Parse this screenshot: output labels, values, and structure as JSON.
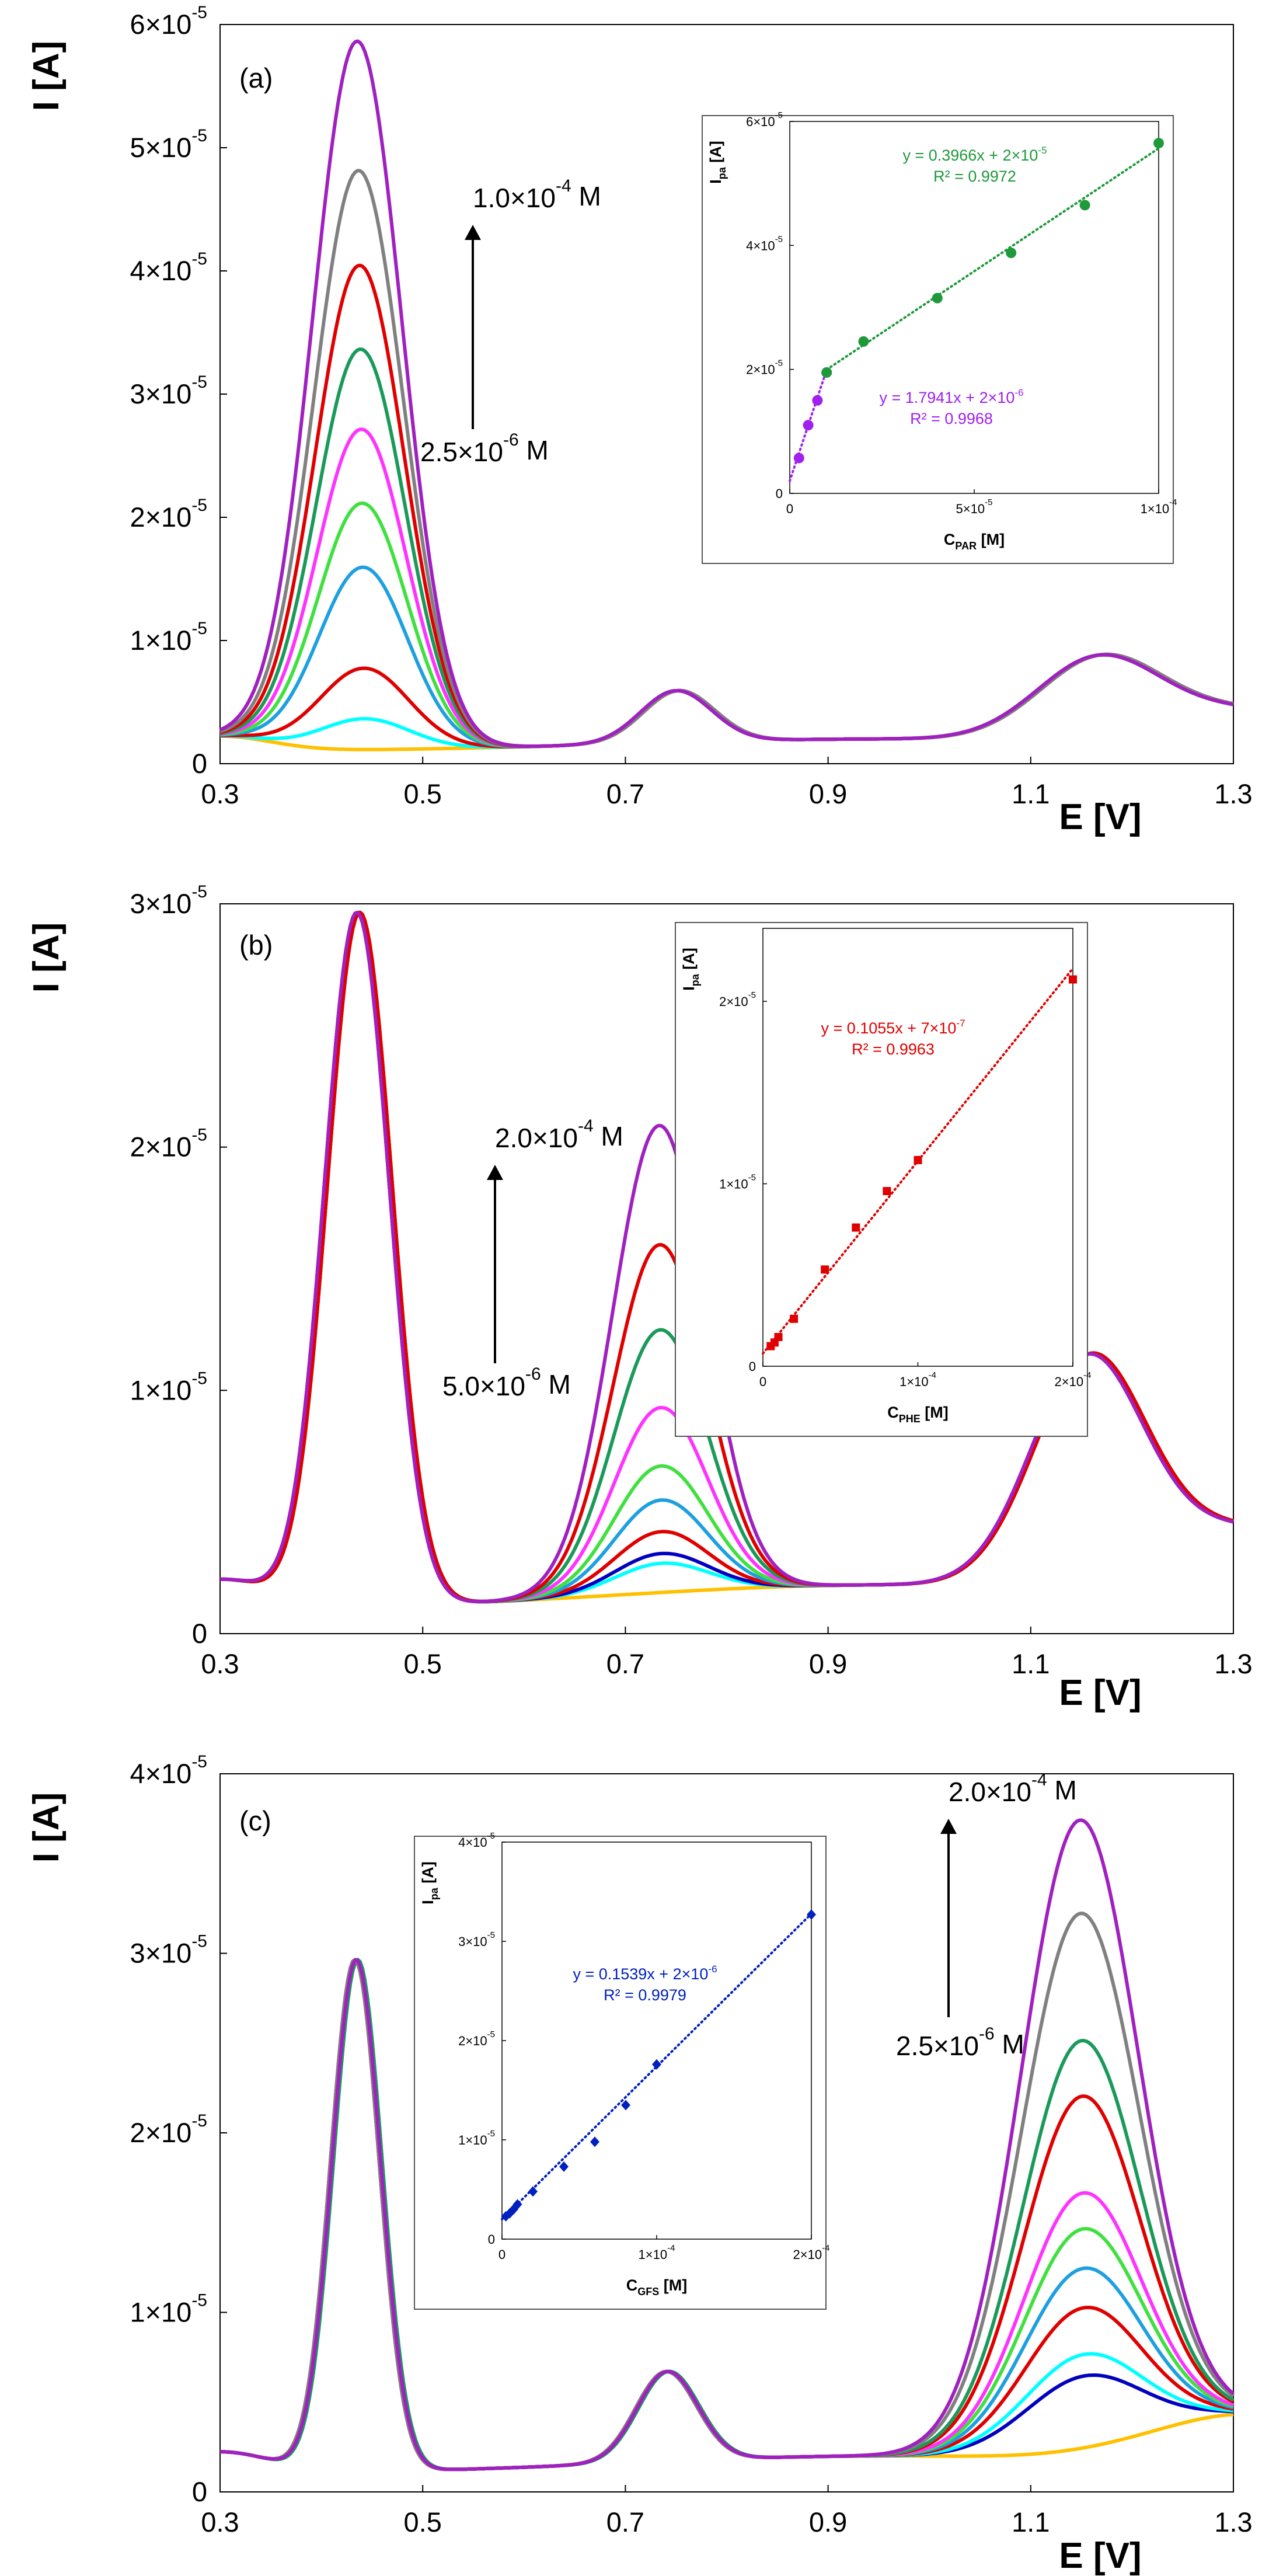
{
  "chart_data": [
    {
      "type": "line",
      "label": "(a)",
      "xlabel": "E [V]",
      "ylabel": "I [A]",
      "xlim": [
        0.3,
        1.3
      ],
      "ylim": [
        0,
        6e-05
      ],
      "xticks": [
        "0.3",
        "0.5",
        "0.7",
        "0.9",
        "1.1",
        "1.3"
      ],
      "yticks": [
        {
          "v": 0,
          "m": "0",
          "e": ""
        },
        {
          "v": 1e-05,
          "m": "1×10",
          "e": "-5"
        },
        {
          "v": 2e-05,
          "m": "2×10",
          "e": "-5"
        },
        {
          "v": 3e-05,
          "m": "3×10",
          "e": "-5"
        },
        {
          "v": 4e-05,
          "m": "4×10",
          "e": "-5"
        },
        {
          "v": 5e-05,
          "m": "5×10",
          "e": "-5"
        },
        {
          "v": 6e-05,
          "m": "6×10",
          "e": "-5"
        }
      ],
      "annotation_top": {
        "m": "1.0×10",
        "e": "-4",
        "u": " M"
      },
      "annotation_bottom": {
        "m": "2.5×10",
        "e": "-6",
        "u": " M"
      },
      "varying_peak_index": 0,
      "baseline_peaks": [
        {
          "mu": 0.75,
          "sigma": 0.035,
          "h": 4.2e-06
        },
        {
          "mu": 1.165,
          "sigma": 0.06,
          "h": 6.2e-06
        }
      ],
      "series": [
        {
          "color": "#FFC000",
          "peak": 0
        },
        {
          "color": "#00FFFF",
          "peak": 2.5e-06
        },
        {
          "color": "#E00000",
          "peak": 6.6e-06
        },
        {
          "color": "#1EA0E0",
          "peak": 1.48e-05
        },
        {
          "color": "#40E040",
          "peak": 2e-05
        },
        {
          "color": "#FF33FF",
          "peak": 2.6e-05
        },
        {
          "color": "#1A9A5A",
          "peak": 3.25e-05
        },
        {
          "color": "#E00000",
          "peak": 3.93e-05
        },
        {
          "color": "#808080",
          "peak": 4.7e-05
        },
        {
          "color": "#A020C0",
          "peak": 5.75e-05
        }
      ],
      "inset": {
        "xlabel": {
          "main": "C",
          "sub": "PAR",
          "rest": " [M]"
        },
        "ylabel": {
          "main": "I",
          "sub": "pa",
          "rest": " [A]"
        },
        "xlim": [
          0,
          0.0001
        ],
        "ylim": [
          0,
          6e-05
        ],
        "xticks": [
          {
            "v": 0,
            "m": "0",
            "e": ""
          },
          {
            "v": 5e-05,
            "m": "5×10",
            "e": "-5"
          },
          {
            "v": 0.0001,
            "m": "1×10",
            "e": "-4"
          }
        ],
        "yticks": [
          {
            "v": 0,
            "m": "0",
            "e": ""
          },
          {
            "v": 2e-05,
            "m": "2×10",
            "e": "-5"
          },
          {
            "v": 4e-05,
            "m": "4×10",
            "e": "-5"
          },
          {
            "v": 6e-05,
            "m": "6×10",
            "e": "-5"
          }
        ],
        "sets": [
          {
            "color": "#A020F0",
            "marker": "circle",
            "points": [
              [
                2.5e-06,
                5.7e-06
              ],
              [
                5e-06,
                1.1e-05
              ],
              [
                7.5e-06,
                1.5e-05
              ],
              [
                1e-05,
                1.95e-05
              ]
            ],
            "fit": {
              "slope": 1.7941,
              "intercept": 2e-06,
              "from": 0,
              "to": 1e-05
            },
            "eq": {
              "line": "y = 1.7941x + 2×10",
              "e": "-6",
              "r2": "R² = 0.9968"
            }
          },
          {
            "color": "#1E9A3A",
            "marker": "circle",
            "points": [
              [
                1e-05,
                1.95e-05
              ],
              [
                2e-05,
                2.45e-05
              ],
              [
                4e-05,
                3.15e-05
              ],
              [
                6e-05,
                3.88e-05
              ],
              [
                8e-05,
                4.65e-05
              ],
              [
                0.0001,
                5.65e-05
              ]
            ],
            "fit": {
              "slope": 0.3966,
              "intercept": 1.6e-05,
              "from": 1e-05,
              "to": 0.0001
            },
            "eq": {
              "line": "y = 0.3966x + 2×10",
              "e": "-5",
              "r2": "R² = 0.9972"
            }
          }
        ]
      }
    },
    {
      "type": "line",
      "label": "(b)",
      "xlabel": "E [V]",
      "ylabel": "I [A]",
      "xlim": [
        0.3,
        1.3
      ],
      "ylim": [
        0,
        3e-05
      ],
      "xticks": [
        "0.3",
        "0.5",
        "0.7",
        "0.9",
        "1.1",
        "1.3"
      ],
      "yticks": [
        {
          "v": 0,
          "m": "0",
          "e": ""
        },
        {
          "v": 1e-05,
          "m": "1×10",
          "e": "-5"
        },
        {
          "v": 2e-05,
          "m": "2×10",
          "e": "-5"
        },
        {
          "v": 3e-05,
          "m": "3×10",
          "e": "-5"
        }
      ],
      "annotation_top": {
        "m": "2.0×10",
        "e": "-4",
        "u": " M"
      },
      "annotation_bottom": {
        "m": "5.0×10",
        "e": "-6",
        "u": " M"
      },
      "varying_peak_index": 1,
      "baseline_peaks": [
        {
          "mu": 0.435,
          "sigma": 0.032,
          "h": 2.85e-05
        },
        {
          "mu": 1.155,
          "sigma": 0.055,
          "h": 9e-06
        }
      ],
      "series": [
        {
          "color": "#FFC000",
          "peak": 0
        },
        {
          "color": "#00FFFF",
          "peak": 1.2e-06
        },
        {
          "color": "#0000C0",
          "peak": 1.6e-06
        },
        {
          "color": "#E00000",
          "peak": 2.5e-06
        },
        {
          "color": "#1EA0E0",
          "peak": 3.8e-06
        },
        {
          "color": "#40E040",
          "peak": 5.2e-06
        },
        {
          "color": "#FF33FF",
          "peak": 7.6e-06
        },
        {
          "color": "#1A9A5A",
          "peak": 1.08e-05
        },
        {
          "color": "#E00000",
          "peak": 1.43e-05
        },
        {
          "color": "#A020C0",
          "peak": 1.92e-05
        }
      ],
      "inset": {
        "xlabel": {
          "main": "C",
          "sub": "PHE",
          "rest": " [M]"
        },
        "ylabel": {
          "main": "I",
          "sub": "pa",
          "rest": " [A]"
        },
        "xlim": [
          0,
          0.0002
        ],
        "ylim": [
          0,
          2.4e-05
        ],
        "xticks": [
          {
            "v": 0,
            "m": "0",
            "e": ""
          },
          {
            "v": 0.0001,
            "m": "1×10",
            "e": "-4"
          },
          {
            "v": 0.0002,
            "m": "2×10",
            "e": "-4"
          }
        ],
        "yticks": [
          {
            "v": 0,
            "m": "0",
            "e": ""
          },
          {
            "v": 1e-05,
            "m": "1×10",
            "e": "-5"
          },
          {
            "v": 2e-05,
            "m": "2×10",
            "e": "-5"
          }
        ],
        "sets": [
          {
            "color": "#E00000",
            "marker": "square",
            "points": [
              [
                5e-06,
                1.1e-06
              ],
              [
                7.5e-06,
                1.3e-06
              ],
              [
                1e-05,
                1.6e-06
              ],
              [
                2e-05,
                2.6e-06
              ],
              [
                4e-05,
                5.3e-06
              ],
              [
                6e-05,
                7.6e-06
              ],
              [
                8e-05,
                9.6e-06
              ],
              [
                0.0001,
                1.13e-05
              ],
              [
                0.0002,
                2.12e-05
              ]
            ],
            "fit": {
              "slope": 0.1055,
              "intercept": 7e-07,
              "from": 0,
              "to": 0.0002
            },
            "eq": {
              "line": "y = 0.1055x + 7×10",
              "e": "-7",
              "r2": "R² = 0.9963"
            }
          }
        ]
      }
    },
    {
      "type": "line",
      "label": "(c)",
      "xlabel": "E [V]",
      "ylabel": "I [A]",
      "xlim": [
        0.3,
        1.3
      ],
      "ylim": [
        0,
        4e-05
      ],
      "xticks": [
        "0.3",
        "0.5",
        "0.7",
        "0.9",
        "1.1",
        "1.3"
      ],
      "yticks": [
        {
          "v": 0,
          "m": "0",
          "e": ""
        },
        {
          "v": 1e-05,
          "m": "1×10",
          "e": "-5"
        },
        {
          "v": 2e-05,
          "m": "2×10",
          "e": "-5"
        },
        {
          "v": 3e-05,
          "m": "3×10",
          "e": "-5"
        },
        {
          "v": 4e-05,
          "m": "4×10",
          "e": "-5"
        }
      ],
      "annotation_top": {
        "m": "2.0×10",
        "e": "-4",
        "u": " M"
      },
      "annotation_bottom": {
        "m": "2.5×10",
        "e": "-6",
        "u": " M"
      },
      "varying_peak_index": 2,
      "baseline_peaks": [
        {
          "mu": 0.433,
          "sigma": 0.024,
          "h": 2.85e-05
        },
        {
          "mu": 0.74,
          "sigma": 0.03,
          "h": 5e-06
        }
      ],
      "series": [
        {
          "color": "#FFC000",
          "peak": 0
        },
        {
          "color": "#0000C0",
          "peak": 4e-06
        },
        {
          "color": "#00FFFF",
          "peak": 5.2e-06
        },
        {
          "color": "#E00000",
          "peak": 7.8e-06
        },
        {
          "color": "#1EA0E0",
          "peak": 1e-05
        },
        {
          "color": "#40E040",
          "peak": 1.22e-05
        },
        {
          "color": "#FF33FF",
          "peak": 1.42e-05
        },
        {
          "color": "#E00000",
          "peak": 1.96e-05
        },
        {
          "color": "#1A9A5A",
          "peak": 2.27e-05
        },
        {
          "color": "#808080",
          "peak": 2.98e-05
        },
        {
          "color": "#A020C0",
          "peak": 3.5e-05
        }
      ],
      "inset": {
        "xlabel": {
          "main": "C",
          "sub": "GFS",
          "rest": " [M]"
        },
        "ylabel": {
          "main": "I",
          "sub": "pa",
          "rest": " [A]"
        },
        "xlim": [
          0,
          0.0002
        ],
        "ylim": [
          0,
          4e-05
        ],
        "xticks": [
          {
            "v": 0,
            "m": "0",
            "e": ""
          },
          {
            "v": 0.0001,
            "m": "1×10",
            "e": "-4"
          },
          {
            "v": 0.0002,
            "m": "2×10",
            "e": "-4"
          }
        ],
        "yticks": [
          {
            "v": 0,
            "m": "0",
            "e": ""
          },
          {
            "v": 1e-05,
            "m": "1×10",
            "e": "-5"
          },
          {
            "v": 2e-05,
            "m": "2×10",
            "e": "-5"
          },
          {
            "v": 3e-05,
            "m": "3×10",
            "e": "-5"
          },
          {
            "v": 4e-05,
            "m": "4×10",
            "e": "-5"
          }
        ],
        "sets": [
          {
            "color": "#0020C0",
            "marker": "diamond",
            "points": [
              [
                2.5e-06,
                2.3e-06
              ],
              [
                5e-06,
                2.6e-06
              ],
              [
                7.5e-06,
                3e-06
              ],
              [
                1e-05,
                3.5e-06
              ],
              [
                2e-05,
                4.8e-06
              ],
              [
                4e-05,
                7.3e-06
              ],
              [
                6e-05,
                9.8e-06
              ],
              [
                8e-05,
                1.35e-05
              ],
              [
                0.0001,
                1.76e-05
              ],
              [
                0.0002,
                3.27e-05
              ]
            ],
            "fit": {
              "slope": 0.1539,
              "intercept": 2e-06,
              "from": 0,
              "to": 0.0002
            },
            "eq": {
              "line": "y = 0.1539x + 2×10",
              "e": "-6",
              "r2": "R² = 0.9979"
            }
          }
        ]
      }
    }
  ]
}
